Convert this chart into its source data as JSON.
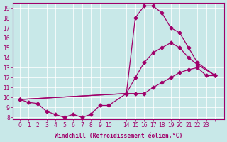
{
  "xlabel": "Windchill (Refroidissement éolien,°C)",
  "bg_color": "#c8e8e8",
  "line_color": "#a0006a",
  "ylim": [
    7.8,
    19.5
  ],
  "yticks": [
    8,
    9,
    10,
    11,
    12,
    13,
    14,
    15,
    16,
    17,
    18,
    19
  ],
  "xtick_positions": [
    0,
    1,
    2,
    3,
    4,
    5,
    6,
    7,
    8,
    9,
    10,
    12,
    13,
    14,
    15,
    16,
    17,
    18,
    19,
    20,
    21,
    22
  ],
  "xtick_labels": [
    "0",
    "1",
    "2",
    "3",
    "4",
    "5",
    "6",
    "7",
    "8",
    "9",
    "10",
    "14",
    "15",
    "16",
    "17",
    "18",
    "19",
    "20",
    "21",
    "22",
    "23",
    ""
  ],
  "line1_x": [
    0,
    1,
    2,
    3,
    4,
    5,
    6,
    7,
    8,
    9,
    10,
    12,
    13,
    14,
    15,
    16,
    17,
    18,
    19,
    20,
    21,
    22
  ],
  "line1_y": [
    9.8,
    9.5,
    9.4,
    8.6,
    8.3,
    8.0,
    8.3,
    8.0,
    8.3,
    9.2,
    9.2,
    10.4,
    10.4,
    10.4,
    11.0,
    11.5,
    12.0,
    12.5,
    12.8,
    13.0,
    12.2,
    12.2
  ],
  "line2_x": [
    0,
    12,
    13,
    14,
    15,
    16,
    17,
    18,
    19,
    20,
    22
  ],
  "line2_y": [
    9.8,
    10.4,
    18.0,
    19.2,
    19.2,
    18.5,
    17.0,
    16.5,
    15.0,
    13.5,
    12.2
  ],
  "line3_x": [
    0,
    12,
    13,
    14,
    15,
    16,
    17,
    18,
    19,
    20,
    22
  ],
  "line3_y": [
    9.8,
    10.4,
    12.0,
    13.5,
    14.5,
    15.0,
    15.5,
    15.0,
    14.0,
    13.3,
    12.2
  ]
}
